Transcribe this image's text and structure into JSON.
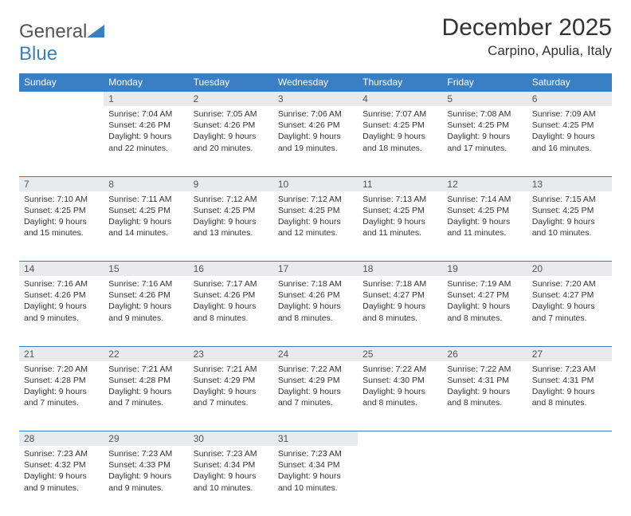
{
  "logo": {
    "text_gray": "General",
    "text_blue": "Blue"
  },
  "title": "December 2025",
  "location": "Carpino, Apulia, Italy",
  "colors": {
    "header_bg": "#3a7fc4",
    "header_text": "#ffffff",
    "daynum_bg": "#e8eaed",
    "daynum_text": "#555555",
    "body_text": "#333333",
    "border": "#3a7fc4"
  },
  "weekdays": [
    "Sunday",
    "Monday",
    "Tuesday",
    "Wednesday",
    "Thursday",
    "Friday",
    "Saturday"
  ],
  "weeks": [
    [
      null,
      {
        "n": "1",
        "sr": "Sunrise: 7:04 AM",
        "ss": "Sunset: 4:26 PM",
        "d1": "Daylight: 9 hours",
        "d2": "and 22 minutes."
      },
      {
        "n": "2",
        "sr": "Sunrise: 7:05 AM",
        "ss": "Sunset: 4:26 PM",
        "d1": "Daylight: 9 hours",
        "d2": "and 20 minutes."
      },
      {
        "n": "3",
        "sr": "Sunrise: 7:06 AM",
        "ss": "Sunset: 4:26 PM",
        "d1": "Daylight: 9 hours",
        "d2": "and 19 minutes."
      },
      {
        "n": "4",
        "sr": "Sunrise: 7:07 AM",
        "ss": "Sunset: 4:25 PM",
        "d1": "Daylight: 9 hours",
        "d2": "and 18 minutes."
      },
      {
        "n": "5",
        "sr": "Sunrise: 7:08 AM",
        "ss": "Sunset: 4:25 PM",
        "d1": "Daylight: 9 hours",
        "d2": "and 17 minutes."
      },
      {
        "n": "6",
        "sr": "Sunrise: 7:09 AM",
        "ss": "Sunset: 4:25 PM",
        "d1": "Daylight: 9 hours",
        "d2": "and 16 minutes."
      }
    ],
    [
      {
        "n": "7",
        "sr": "Sunrise: 7:10 AM",
        "ss": "Sunset: 4:25 PM",
        "d1": "Daylight: 9 hours",
        "d2": "and 15 minutes."
      },
      {
        "n": "8",
        "sr": "Sunrise: 7:11 AM",
        "ss": "Sunset: 4:25 PM",
        "d1": "Daylight: 9 hours",
        "d2": "and 14 minutes."
      },
      {
        "n": "9",
        "sr": "Sunrise: 7:12 AM",
        "ss": "Sunset: 4:25 PM",
        "d1": "Daylight: 9 hours",
        "d2": "and 13 minutes."
      },
      {
        "n": "10",
        "sr": "Sunrise: 7:12 AM",
        "ss": "Sunset: 4:25 PM",
        "d1": "Daylight: 9 hours",
        "d2": "and 12 minutes."
      },
      {
        "n": "11",
        "sr": "Sunrise: 7:13 AM",
        "ss": "Sunset: 4:25 PM",
        "d1": "Daylight: 9 hours",
        "d2": "and 11 minutes."
      },
      {
        "n": "12",
        "sr": "Sunrise: 7:14 AM",
        "ss": "Sunset: 4:25 PM",
        "d1": "Daylight: 9 hours",
        "d2": "and 11 minutes."
      },
      {
        "n": "13",
        "sr": "Sunrise: 7:15 AM",
        "ss": "Sunset: 4:25 PM",
        "d1": "Daylight: 9 hours",
        "d2": "and 10 minutes."
      }
    ],
    [
      {
        "n": "14",
        "sr": "Sunrise: 7:16 AM",
        "ss": "Sunset: 4:26 PM",
        "d1": "Daylight: 9 hours",
        "d2": "and 9 minutes."
      },
      {
        "n": "15",
        "sr": "Sunrise: 7:16 AM",
        "ss": "Sunset: 4:26 PM",
        "d1": "Daylight: 9 hours",
        "d2": "and 9 minutes."
      },
      {
        "n": "16",
        "sr": "Sunrise: 7:17 AM",
        "ss": "Sunset: 4:26 PM",
        "d1": "Daylight: 9 hours",
        "d2": "and 8 minutes."
      },
      {
        "n": "17",
        "sr": "Sunrise: 7:18 AM",
        "ss": "Sunset: 4:26 PM",
        "d1": "Daylight: 9 hours",
        "d2": "and 8 minutes."
      },
      {
        "n": "18",
        "sr": "Sunrise: 7:18 AM",
        "ss": "Sunset: 4:27 PM",
        "d1": "Daylight: 9 hours",
        "d2": "and 8 minutes."
      },
      {
        "n": "19",
        "sr": "Sunrise: 7:19 AM",
        "ss": "Sunset: 4:27 PM",
        "d1": "Daylight: 9 hours",
        "d2": "and 8 minutes."
      },
      {
        "n": "20",
        "sr": "Sunrise: 7:20 AM",
        "ss": "Sunset: 4:27 PM",
        "d1": "Daylight: 9 hours",
        "d2": "and 7 minutes."
      }
    ],
    [
      {
        "n": "21",
        "sr": "Sunrise: 7:20 AM",
        "ss": "Sunset: 4:28 PM",
        "d1": "Daylight: 9 hours",
        "d2": "and 7 minutes."
      },
      {
        "n": "22",
        "sr": "Sunrise: 7:21 AM",
        "ss": "Sunset: 4:28 PM",
        "d1": "Daylight: 9 hours",
        "d2": "and 7 minutes."
      },
      {
        "n": "23",
        "sr": "Sunrise: 7:21 AM",
        "ss": "Sunset: 4:29 PM",
        "d1": "Daylight: 9 hours",
        "d2": "and 7 minutes."
      },
      {
        "n": "24",
        "sr": "Sunrise: 7:22 AM",
        "ss": "Sunset: 4:29 PM",
        "d1": "Daylight: 9 hours",
        "d2": "and 7 minutes."
      },
      {
        "n": "25",
        "sr": "Sunrise: 7:22 AM",
        "ss": "Sunset: 4:30 PM",
        "d1": "Daylight: 9 hours",
        "d2": "and 8 minutes."
      },
      {
        "n": "26",
        "sr": "Sunrise: 7:22 AM",
        "ss": "Sunset: 4:31 PM",
        "d1": "Daylight: 9 hours",
        "d2": "and 8 minutes."
      },
      {
        "n": "27",
        "sr": "Sunrise: 7:23 AM",
        "ss": "Sunset: 4:31 PM",
        "d1": "Daylight: 9 hours",
        "d2": "and 8 minutes."
      }
    ],
    [
      {
        "n": "28",
        "sr": "Sunrise: 7:23 AM",
        "ss": "Sunset: 4:32 PM",
        "d1": "Daylight: 9 hours",
        "d2": "and 9 minutes."
      },
      {
        "n": "29",
        "sr": "Sunrise: 7:23 AM",
        "ss": "Sunset: 4:33 PM",
        "d1": "Daylight: 9 hours",
        "d2": "and 9 minutes."
      },
      {
        "n": "30",
        "sr": "Sunrise: 7:23 AM",
        "ss": "Sunset: 4:34 PM",
        "d1": "Daylight: 9 hours",
        "d2": "and 10 minutes."
      },
      {
        "n": "31",
        "sr": "Sunrise: 7:23 AM",
        "ss": "Sunset: 4:34 PM",
        "d1": "Daylight: 9 hours",
        "d2": "and 10 minutes."
      },
      null,
      null,
      null
    ]
  ]
}
